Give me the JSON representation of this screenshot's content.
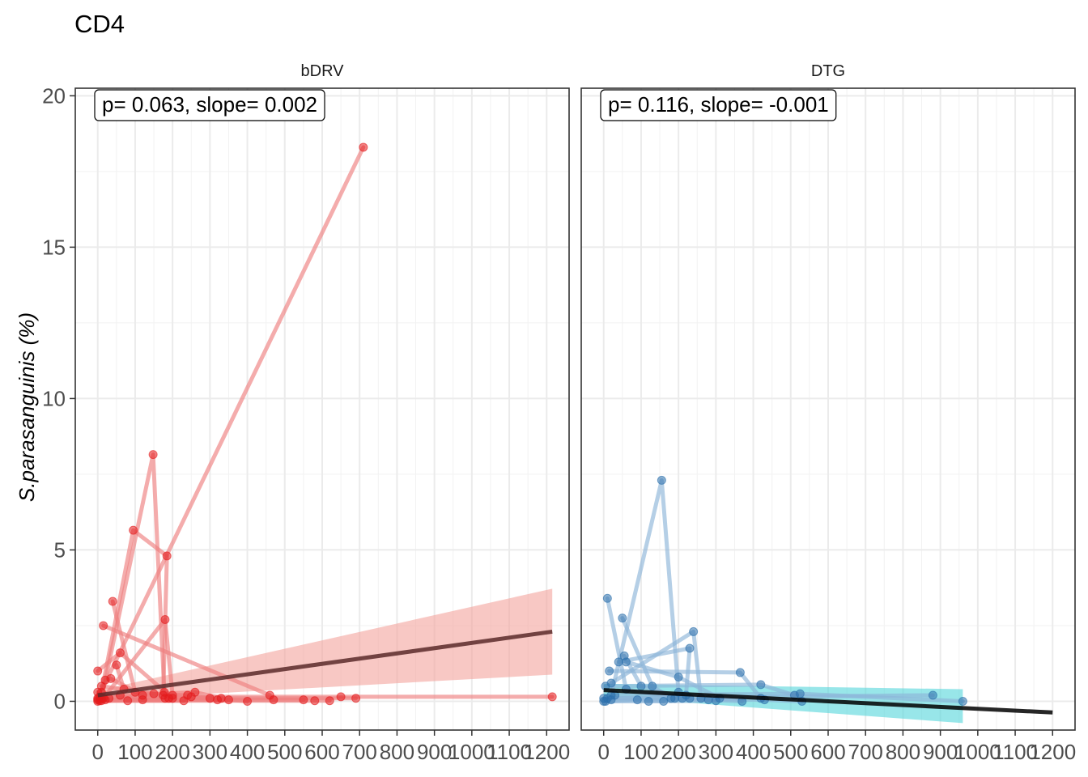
{
  "title": "CD4",
  "chart_data": {
    "type": "scatter",
    "ylabel": "S.parasanguinis (%)",
    "xlabel": "",
    "xlim": [
      -60,
      1260
    ],
    "ylim": [
      -0.95,
      20.25
    ],
    "x_ticks": [
      0,
      100,
      200,
      300,
      400,
      500,
      600,
      700,
      800,
      900,
      1000,
      1100,
      1200
    ],
    "y_ticks": [
      0,
      5,
      10,
      15,
      20
    ],
    "grid": true,
    "facets": [
      {
        "label": "bDRV",
        "annotation": "p= 0.063, slope= 0.002",
        "point_color": "#e41a1c",
        "line_color": "#ee7f80",
        "band_color": "#f4a39d",
        "fit_color": "#5a2a2a",
        "fit": {
          "x": [
            0,
            1215
          ],
          "y": [
            0.2,
            2.3
          ]
        },
        "band": {
          "x": [
            0,
            1215
          ],
          "upper": [
            0.35,
            3.72
          ],
          "lower": [
            0.05,
            0.88
          ]
        },
        "subjects": [
          {
            "x": [
              0,
              710
            ],
            "y": [
              0.1,
              18.3
            ]
          },
          {
            "x": [
              10,
              148,
              178,
              190
            ],
            "y": [
              0.1,
              8.15,
              0.3,
              0.1
            ]
          },
          {
            "x": [
              10,
              95,
              185,
              175
            ],
            "y": [
              0.3,
              5.65,
              4.8,
              0.2
            ]
          },
          {
            "x": [
              15,
              180,
              200
            ],
            "y": [
              0.1,
              2.7,
              0.2
            ]
          },
          {
            "x": [
              40,
              100,
              300
            ],
            "y": [
              3.3,
              0.3,
              0.1
            ]
          },
          {
            "x": [
              15,
              460
            ],
            "y": [
              2.5,
              0.2
            ]
          },
          {
            "x": [
              0,
              60,
              200
            ],
            "y": [
              1.0,
              1.6,
              0.1
            ]
          },
          {
            "x": [
              50,
              70,
              180
            ],
            "y": [
              1.2,
              0.4,
              0.1
            ]
          },
          {
            "x": [
              20,
              35,
              120
            ],
            "y": [
              0.7,
              0.75,
              0.2
            ]
          },
          {
            "x": [
              0,
              60,
              260,
              350
            ],
            "y": [
              0.3,
              0.2,
              0.3,
              0.05
            ]
          },
          {
            "x": [
              5,
              650,
              1215
            ],
            "y": [
              0.15,
              0.15,
              0.15
            ]
          },
          {
            "x": [
              30,
              330,
              690
            ],
            "y": [
              0.1,
              0.1,
              0.1
            ]
          },
          {
            "x": [
              10,
              150,
              240
            ],
            "y": [
              0.5,
              0.25,
              0.2
            ]
          },
          {
            "x": [
              0,
              250,
              400
            ],
            "y": [
              0.0,
              0.15,
              0.0
            ]
          },
          {
            "x": [
              20,
              120,
              320
            ],
            "y": [
              0.05,
              0.05,
              0.05
            ]
          },
          {
            "x": [
              0,
              470,
              550
            ],
            "y": [
              0.05,
              0.05,
              0.05
            ]
          },
          {
            "x": [
              10,
              580,
              620
            ],
            "y": [
              0.02,
              0.02,
              0.02
            ]
          },
          {
            "x": [
              5,
              80,
              230
            ],
            "y": [
              0.02,
              0.02,
              0.02
            ]
          }
        ]
      },
      {
        "label": "DTG",
        "annotation": "p= 0.116, slope= -0.001",
        "point_color": "#2b6fac",
        "line_color": "#8eb5d8",
        "band_color": "#54d6db",
        "fit_color": "#000000",
        "fit": {
          "x": [
            0,
            1200
          ],
          "y": [
            0.37,
            -0.37
          ]
        },
        "band": {
          "x": [
            0,
            960
          ],
          "upper": [
            0.58,
            0.4
          ],
          "lower": [
            0.16,
            -0.72
          ]
        },
        "subjects": [
          {
            "x": [
              20,
              155,
              200
            ],
            "y": [
              0.2,
              7.3,
              0.3
            ]
          },
          {
            "x": [
              10,
              60,
              190,
              230
            ],
            "y": [
              3.4,
              0.4,
              0.1,
              0.1
            ]
          },
          {
            "x": [
              50,
              130,
              180
            ],
            "y": [
              2.75,
              0.5,
              0.1
            ]
          },
          {
            "x": [
              20,
              240,
              260
            ],
            "y": [
              0.6,
              2.3,
              0.1
            ]
          },
          {
            "x": [
              40,
              230,
              220
            ],
            "y": [
              1.3,
              1.75,
              0.2
            ]
          },
          {
            "x": [
              55,
              100,
              210
            ],
            "y": [
              1.5,
              0.5,
              0.1
            ]
          },
          {
            "x": [
              15,
              365,
              420
            ],
            "y": [
              1.0,
              0.95,
              0.1
            ]
          },
          {
            "x": [
              60,
              200,
              310
            ],
            "y": [
              1.3,
              0.8,
              0.1
            ]
          },
          {
            "x": [
              5,
              420,
              510
            ],
            "y": [
              0.5,
              0.55,
              0.2
            ]
          },
          {
            "x": [
              30,
              525,
              960
            ],
            "y": [
              0.2,
              0.25,
              0.0
            ]
          },
          {
            "x": [
              0,
              880
            ],
            "y": [
              0.1,
              0.2
            ]
          },
          {
            "x": [
              10,
              430,
              530
            ],
            "y": [
              0.1,
              0.05,
              0.0
            ]
          },
          {
            "x": [
              0,
              90,
              160
            ],
            "y": [
              0.0,
              0.05,
              0.0
            ]
          },
          {
            "x": [
              20,
              280,
              370
            ],
            "y": [
              0.05,
              0.05,
              0.0
            ]
          },
          {
            "x": [
              5,
              120,
              300
            ],
            "y": [
              0.0,
              0.0,
              0.02
            ]
          }
        ]
      }
    ]
  }
}
